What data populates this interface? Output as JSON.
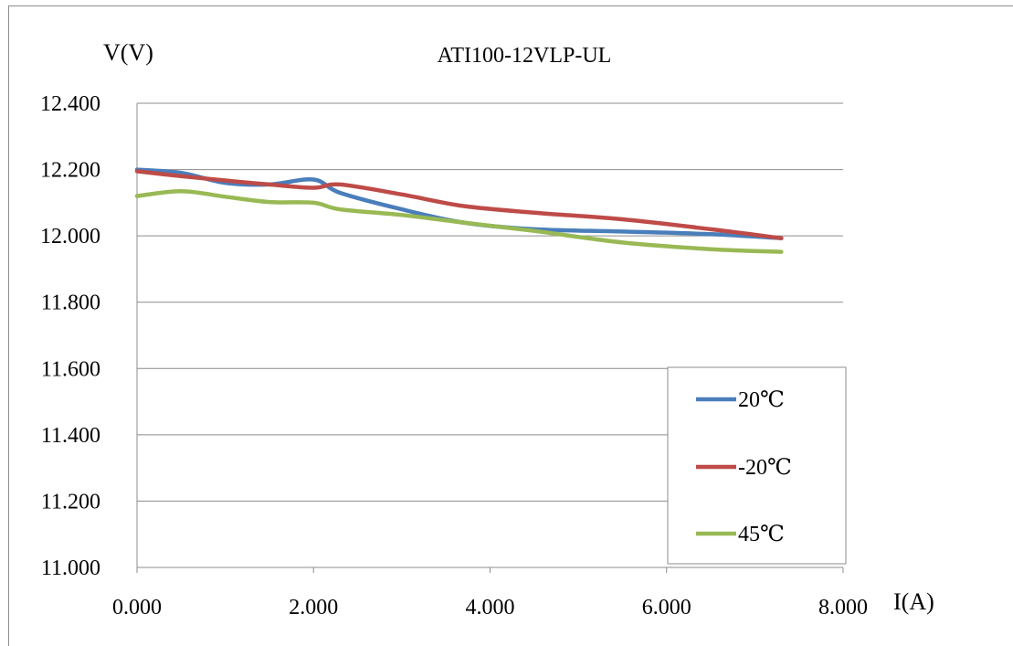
{
  "chart_data": {
    "type": "line",
    "title": "ATI100-12VLP-UL",
    "ylabel": "V(V)",
    "xlabel": "I(A)",
    "xlim": [
      0,
      8
    ],
    "ylim": [
      11.0,
      12.4
    ],
    "x_ticks": [
      "0.000",
      "2.000",
      "4.000",
      "6.000",
      "8.000"
    ],
    "x_tick_values": [
      0,
      2,
      4,
      6,
      8
    ],
    "y_ticks": [
      "12.400",
      "12.200",
      "12.000",
      "11.800",
      "11.600",
      "11.400",
      "11.200",
      "11.000"
    ],
    "y_tick_values": [
      12.4,
      12.2,
      12.0,
      11.8,
      11.6,
      11.4,
      11.2,
      11.0
    ],
    "grid": "horizontal",
    "legend_position": "bottom-right",
    "series": [
      {
        "name": "20℃",
        "color": "#4a7ebb",
        "x": [
          0,
          0.5,
          1.0,
          1.5,
          2.0,
          2.3,
          3.0,
          3.7,
          4.5,
          5.5,
          6.5,
          7.3
        ],
        "y": [
          12.2,
          12.19,
          12.16,
          12.155,
          12.17,
          12.13,
          12.08,
          12.04,
          12.02,
          12.013,
          12.005,
          11.993
        ]
      },
      {
        "name": "-20℃",
        "color": "#be4b48",
        "x": [
          0,
          0.5,
          1.0,
          1.5,
          2.0,
          2.3,
          3.0,
          3.7,
          4.5,
          5.5,
          6.5,
          7.3
        ],
        "y": [
          12.195,
          12.18,
          12.167,
          12.155,
          12.145,
          12.155,
          12.125,
          12.09,
          12.07,
          12.05,
          12.02,
          11.993
        ]
      },
      {
        "name": "45℃",
        "color": "#98b954",
        "x": [
          0,
          0.5,
          1.0,
          1.5,
          2.0,
          2.3,
          3.0,
          3.7,
          4.5,
          5.5,
          6.5,
          7.3
        ],
        "y": [
          12.12,
          12.135,
          12.118,
          12.102,
          12.1,
          12.08,
          12.063,
          12.04,
          12.015,
          11.98,
          11.96,
          11.952
        ]
      }
    ]
  }
}
